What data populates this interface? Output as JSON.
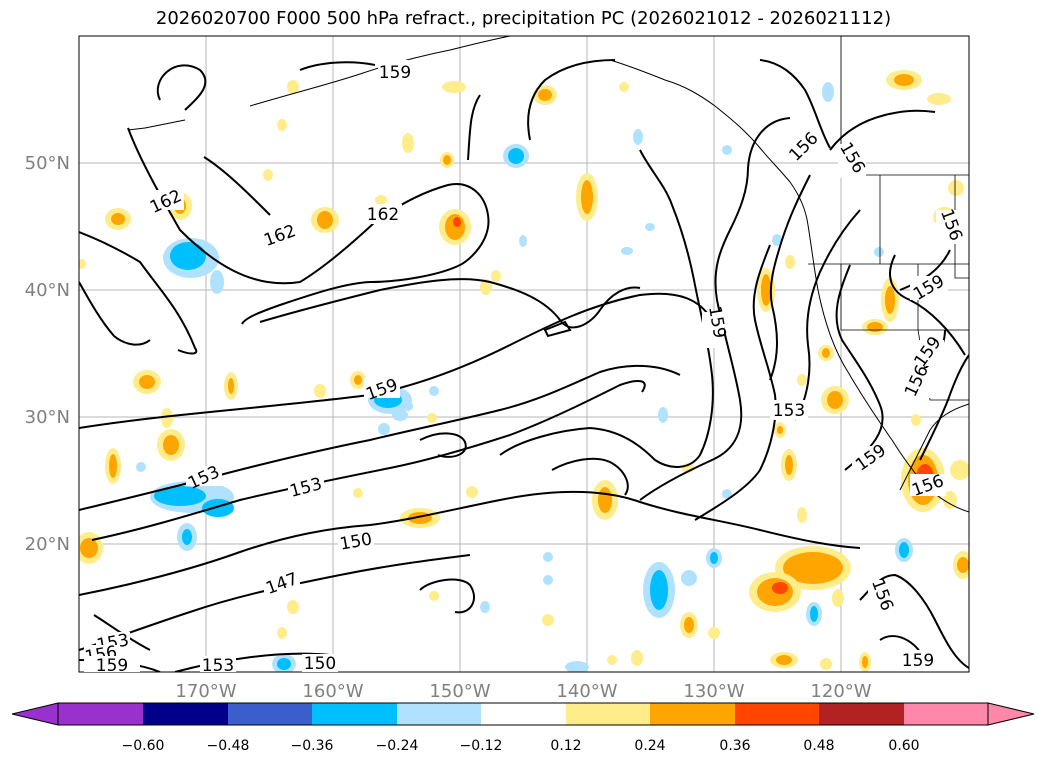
{
  "title": "2026020700 F000 500 hPa refract., precipitation PC (2026021012 - 2026021112)",
  "map": {
    "lon_labels": [
      "170°W",
      "160°W",
      "150°W",
      "140°W",
      "130°W",
      "120°W"
    ],
    "lat_labels": [
      "50°N",
      "40°N",
      "30°N",
      "20°N"
    ],
    "contour_labels": [
      {
        "text": "159"
      },
      {
        "text": "162"
      },
      {
        "text": "162"
      },
      {
        "text": "162"
      },
      {
        "text": "159"
      },
      {
        "text": "153"
      },
      {
        "text": "153"
      },
      {
        "text": "150"
      },
      {
        "text": "147"
      },
      {
        "text": "153"
      },
      {
        "text": "150"
      },
      {
        "text": "153"
      },
      {
        "text": "156"
      },
      {
        "text": "159"
      },
      {
        "text": "159"
      },
      {
        "text": "153"
      },
      {
        "text": "156"
      },
      {
        "text": "156"
      },
      {
        "text": "156"
      },
      {
        "text": "159"
      },
      {
        "text": "159"
      },
      {
        "text": "156"
      },
      {
        "text": "159"
      },
      {
        "text": "156"
      },
      {
        "text": "156"
      },
      {
        "text": "159"
      }
    ]
  },
  "colorbar": {
    "colors": [
      "#9932cc",
      "#00008b",
      "#3a5fcd",
      "#00bfff",
      "#b0e2ff",
      "#ffffff",
      "#ffec8b",
      "#ffa500",
      "#ff4500",
      "#b22222",
      "#ff88aa"
    ],
    "tick_labels": [
      "−0.60",
      "−0.48",
      "−0.36",
      "−0.24",
      "−0.12",
      "0.12",
      "0.24",
      "0.36",
      "0.48",
      "0.60"
    ]
  }
}
